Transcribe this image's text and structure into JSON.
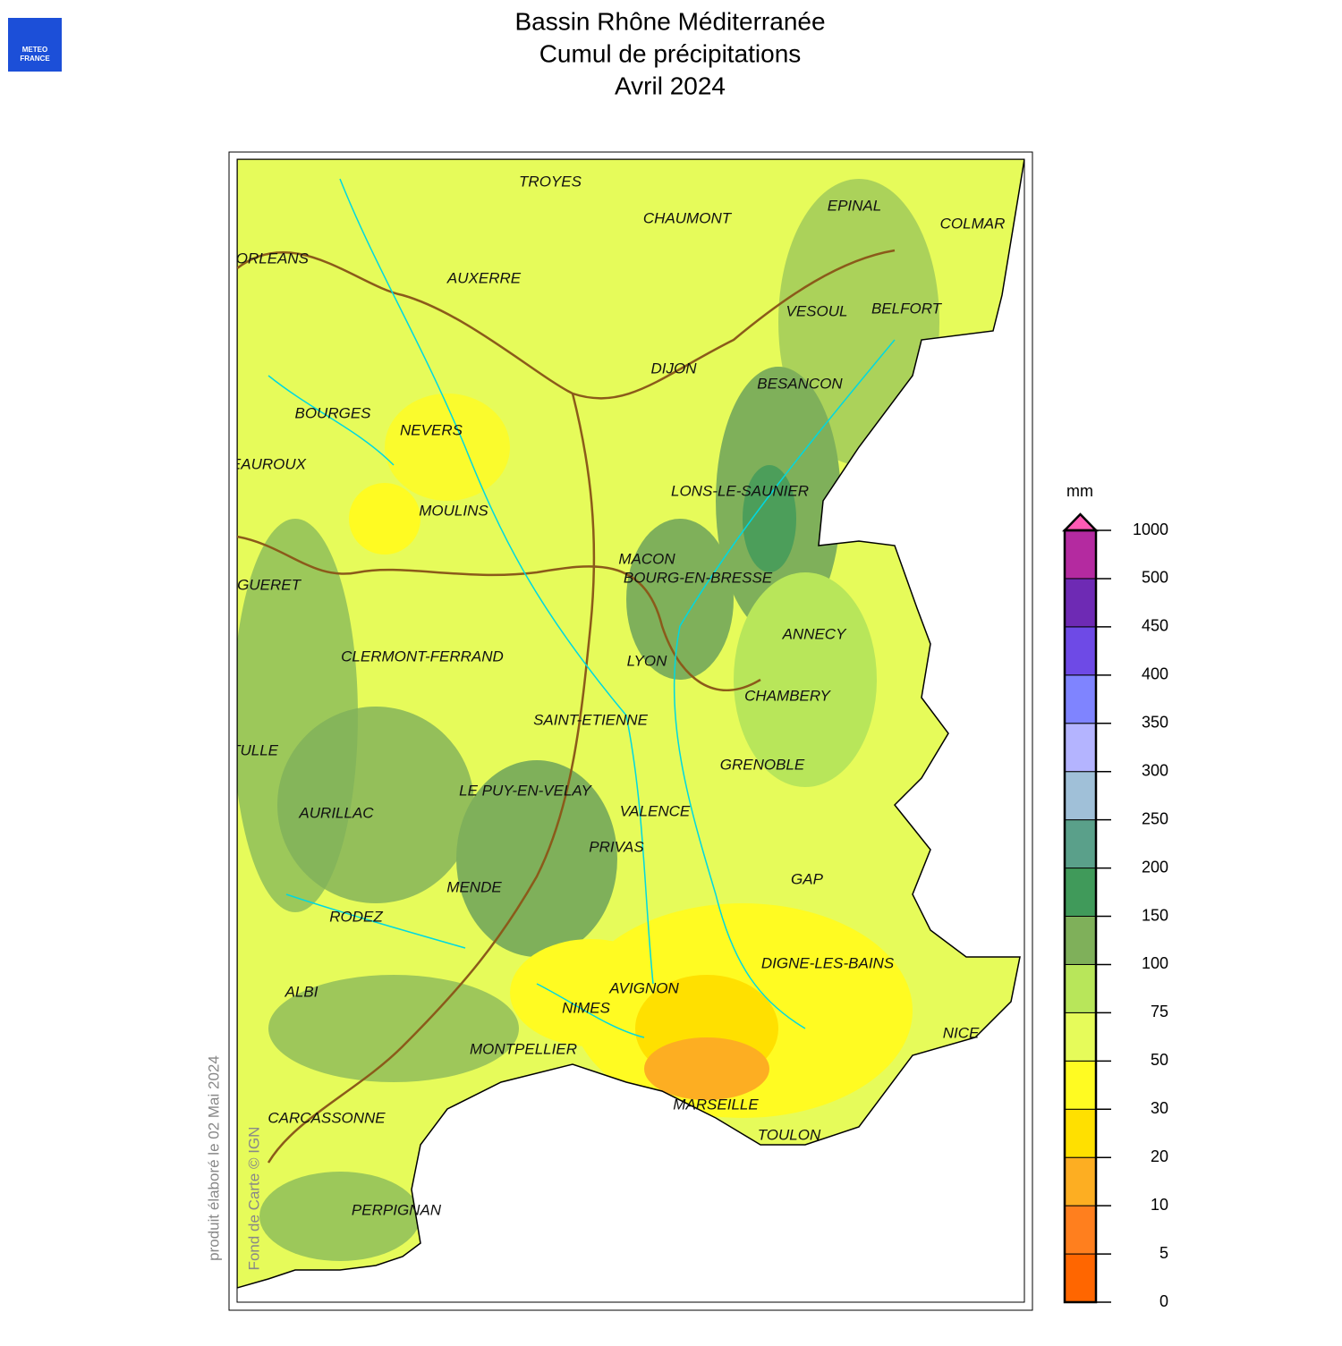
{
  "header": {
    "title_lines": [
      "Bassin Rhône Méditerranée",
      "Cumul de précipitations",
      "Avril 2024"
    ]
  },
  "logo": {
    "lines": [
      "METEO",
      "FRANCE"
    ]
  },
  "map": {
    "cities": [
      "TROYES",
      "CHAUMONT",
      "EPINAL",
      "COLMAR",
      "ORLEANS",
      "AUXERRE",
      "VESOUL",
      "BELFORT",
      "DIJON",
      "BESANCON",
      "BOURGES",
      "NEVERS",
      "CHATEAUROUX",
      "LONS-LE-SAUNIER",
      "MOULINS",
      "MACON",
      "BOURG-EN-BRESSE",
      "GUERET",
      "ANNECY",
      "CLERMONT-FERRAND",
      "LYON",
      "CHAMBERY",
      "SAINT-ETIENNE",
      "TULLE",
      "GRENOBLE",
      "LE PUY-EN-VELAY",
      "AURILLAC",
      "VALENCE",
      "PRIVAS",
      "GAP",
      "MENDE",
      "RODEZ",
      "DIGNE-LES-BAINS",
      "ALBI",
      "AVIGNON",
      "NIMES",
      "NICE",
      "MONTPELLIER",
      "CARCASSONNE",
      "MARSEILLE",
      "TOULON",
      "PERPIGNAN"
    ]
  },
  "legend": {
    "unit": "mm",
    "ticks": [
      0,
      5,
      10,
      20,
      30,
      50,
      75,
      100,
      150,
      200,
      250,
      300,
      350,
      400,
      450,
      500,
      1000
    ],
    "colors": [
      "#ff6600",
      "#ff7f1e",
      "#fdae22",
      "#ffe000",
      "#fffb22",
      "#e6fb5a",
      "#b8e65a",
      "#7fb05a",
      "#409a5a",
      "#5aa08a",
      "#a0c0d8",
      "#b4b4ff",
      "#7f84ff",
      "#6e4ae6",
      "#6e2ab4",
      "#b42aa0"
    ],
    "overflow_color": "#ff5ab4"
  },
  "footer": {
    "produced": "produit élaboré le 02 Mai 2024",
    "basemap": "Fond de Carte © IGN"
  }
}
